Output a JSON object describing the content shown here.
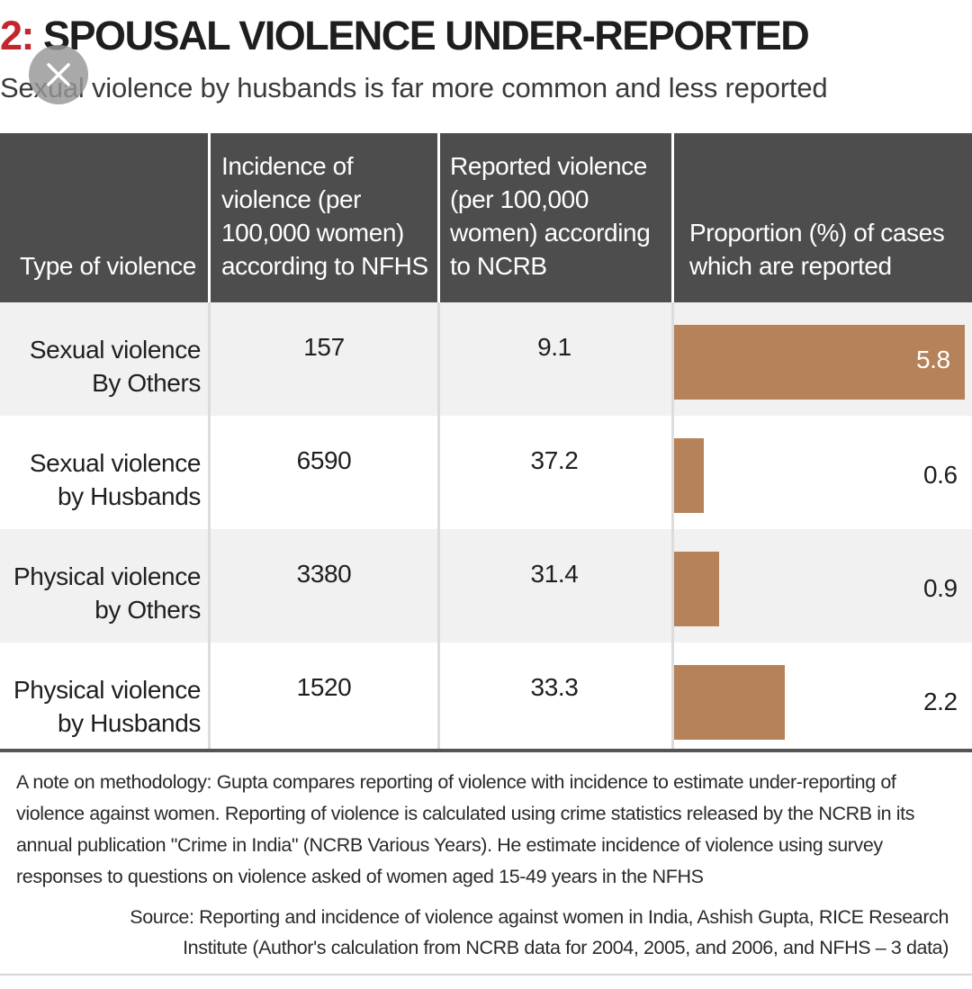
{
  "figure": {
    "title_number": "2:",
    "title_text": "SPOUSAL VIOLENCE UNDER-REPORTED",
    "subtitle": "Sexual violence by husbands is far more common and less reported",
    "note": "A note on methodology: Gupta compares reporting of violence with incidence to estimate under-reporting of violence against women. Reporting of violence is calculated using crime statistics released by the NCRB in its annual publication \"Crime in India\" (NCRB Various Years). He estimate incidence of violence using survey responses to questions on violence asked of women aged 15-49 years in the NFHS",
    "source": "Source: Reporting and incidence of violence against women in India, Ashish Gupta, RICE Research Institute (Author's calculation from NCRB data for 2004, 2005, and 2006, and NFHS – 3 data)"
  },
  "overlay": {
    "close_icon": "close-icon"
  },
  "colors": {
    "header_bg": "#4d4d4d",
    "bar": "#b5825a",
    "title_accent": "#c1272d",
    "row_shade": "#f1f1f1"
  },
  "chart_data": {
    "type": "table",
    "columns": [
      "Type of violence",
      "Incidence of violence (per 100,000 women) according to NFHS",
      "Reported violence (per 100,000 women) according to NCRB",
      "Proportion (%) of cases which are reported"
    ],
    "rows": [
      {
        "type_line1": "Sexual violence",
        "type_line2": "By Others",
        "incidence": "157",
        "reported": "9.1",
        "proportion": 5.8
      },
      {
        "type_line1": "Sexual violence",
        "type_line2": "by Husbands",
        "incidence": "6590",
        "reported": "37.2",
        "proportion": 0.6
      },
      {
        "type_line1": "Physical violence",
        "type_line2": "by Others",
        "incidence": "3380",
        "reported": "31.4",
        "proportion": 0.9
      },
      {
        "type_line1": "Physical violence",
        "type_line2": "by Husbands",
        "incidence": "1520",
        "reported": "33.3",
        "proportion": 2.2
      }
    ],
    "proportion_bar_max": 5.8
  }
}
